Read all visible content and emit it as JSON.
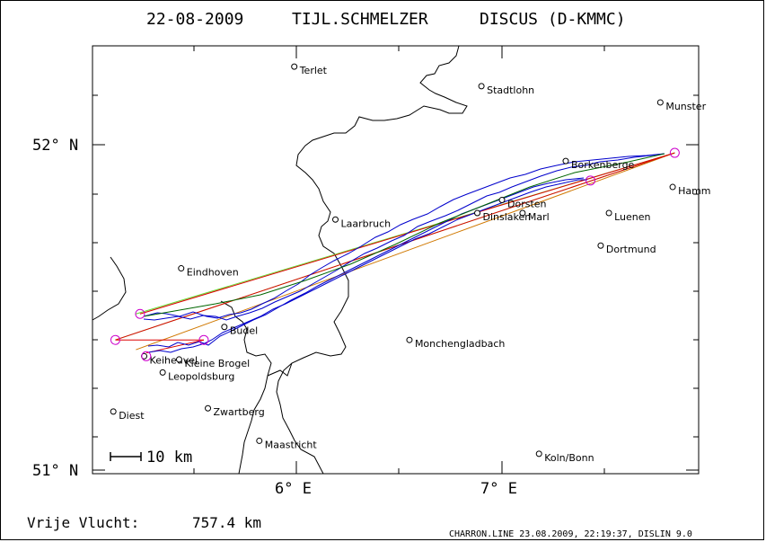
{
  "title": {
    "date": "22-08-2009",
    "pilot": "TIJL.SCHMELZER",
    "glider": "DISCUS (D-KMMC)"
  },
  "axes": {
    "lat_labels": [
      {
        "text": "52° N",
        "lat": 52.0
      },
      {
        "text": "51° N",
        "lat": 51.0
      }
    ],
    "lon_labels": [
      {
        "text": "6° E",
        "lon": 6.0
      },
      {
        "text": "7° E",
        "lon": 7.0
      }
    ],
    "extent": {
      "lon_min": 5.0,
      "lon_max": 7.95,
      "lat_min": 51.0,
      "lat_max": 52.3
    }
  },
  "scale_bar": {
    "label": "10 km"
  },
  "cities": [
    {
      "name": "Terlet",
      "lon": 5.99,
      "lat": 52.24
    },
    {
      "name": "Stadtlohn",
      "lon": 6.9,
      "lat": 52.18
    },
    {
      "name": "Munster",
      "lon": 7.77,
      "lat": 52.13
    },
    {
      "name": "Borkenberge",
      "lon": 7.31,
      "lat": 51.95
    },
    {
      "name": "Hamm",
      "lon": 7.83,
      "lat": 51.87
    },
    {
      "name": "Dorsten",
      "lon": 7.0,
      "lat": 51.83
    },
    {
      "name": "Marl",
      "lon": 7.1,
      "lat": 51.79
    },
    {
      "name": "Dinslaken",
      "lon": 6.88,
      "lat": 51.79
    },
    {
      "name": "Luenen",
      "lon": 7.52,
      "lat": 51.79
    },
    {
      "name": "Laarbruch",
      "lon": 6.19,
      "lat": 51.77
    },
    {
      "name": "Dortmund",
      "lon": 7.48,
      "lat": 51.69
    },
    {
      "name": "Eindhoven",
      "lon": 5.44,
      "lat": 51.62
    },
    {
      "name": "Budel",
      "lon": 5.65,
      "lat": 51.44
    },
    {
      "name": "Monchengladbach",
      "lon": 6.55,
      "lat": 51.4
    },
    {
      "name": "Keiheuvel",
      "lon": 5.26,
      "lat": 51.35
    },
    {
      "name": "Kleine Brogel",
      "lon": 5.43,
      "lat": 51.34
    },
    {
      "name": "Leopoldsburg",
      "lon": 5.35,
      "lat": 51.3
    },
    {
      "name": "Diest",
      "lon": 5.11,
      "lat": 51.18
    },
    {
      "name": "Zwartberg",
      "lon": 5.57,
      "lat": 51.19
    },
    {
      "name": "Maastricht",
      "lon": 5.82,
      "lat": 51.09
    },
    {
      "name": "Koln/Bonn",
      "lon": 7.18,
      "lat": 51.05
    }
  ],
  "turnpoints": [
    {
      "lon": 7.84,
      "lat": 51.975
    },
    {
      "lon": 7.43,
      "lat": 51.89
    },
    {
      "lon": 5.12,
      "lat": 51.4
    },
    {
      "lon": 5.55,
      "lat": 51.4
    },
    {
      "lon": 5.24,
      "lat": 51.48
    },
    {
      "lon": 5.27,
      "lat": 51.35
    }
  ],
  "task_legs": [
    {
      "color": "#d07800",
      "from": [
        5.22,
        51.37
      ],
      "to": [
        7.84,
        51.975
      ]
    },
    {
      "color": "#66dd33",
      "from": [
        5.22,
        51.48
      ],
      "to": [
        7.84,
        51.975
      ]
    },
    {
      "color": "#66dd33",
      "from": [
        5.12,
        51.4
      ],
      "to": [
        7.84,
        51.975
      ]
    },
    {
      "color": "#dd0000",
      "from": [
        5.24,
        51.48
      ],
      "to": [
        7.84,
        51.975
      ]
    },
    {
      "color": "#dd0000",
      "from": [
        5.12,
        51.4
      ],
      "to": [
        7.84,
        51.975
      ]
    },
    {
      "color": "#dd0000",
      "from": [
        5.12,
        51.4
      ],
      "to": [
        5.55,
        51.4
      ]
    },
    {
      "color": "#dd0000",
      "from": [
        5.27,
        51.36
      ],
      "to": [
        5.55,
        51.4
      ]
    }
  ],
  "footer": {
    "distance_label": "Vrije Vlucht:",
    "distance_value": "757.4 km",
    "credits": "CHARRON.LINE 23.08.2009, 22:19:37, DISLIN 9.0"
  },
  "colors": {
    "track": "#0000cc",
    "turnpoint": "#cc00cc",
    "border": "#000000"
  }
}
